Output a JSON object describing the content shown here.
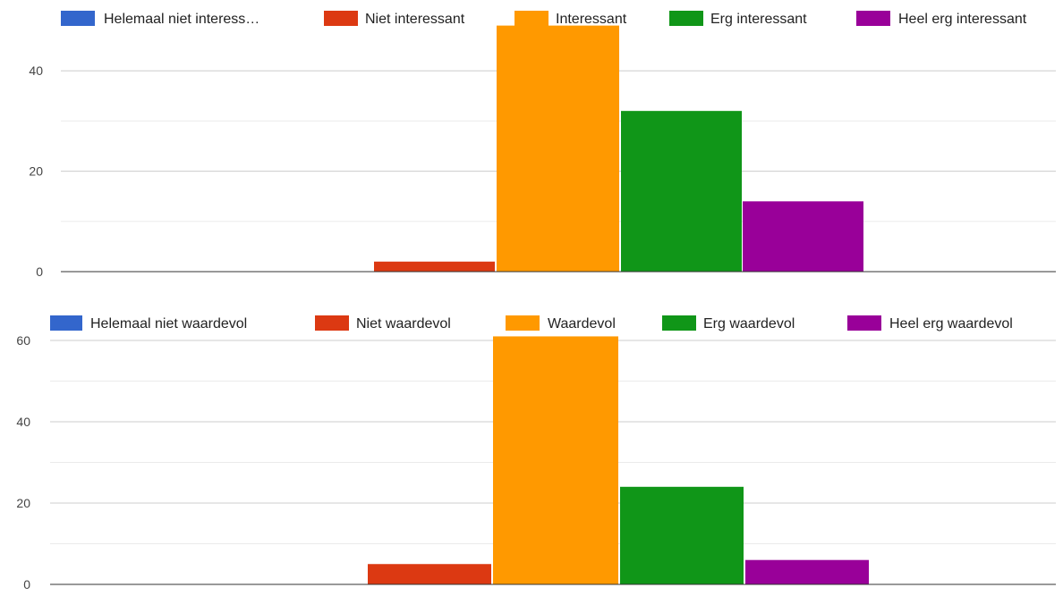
{
  "chart_data": [
    {
      "type": "bar",
      "title": "",
      "xlabel": "",
      "ylabel": "",
      "ylim": [
        0,
        49
      ],
      "yticks": [
        0,
        20,
        40
      ],
      "grid": true,
      "legend_position": "top",
      "categories": [
        ""
      ],
      "series": [
        {
          "name": "Helemaal niet interess…",
          "color": "#3366cc",
          "values": [
            0
          ]
        },
        {
          "name": "Niet interessant",
          "color": "#dc3912",
          "values": [
            2
          ]
        },
        {
          "name": "Interessant",
          "color": "#ff9900",
          "values": [
            49
          ]
        },
        {
          "name": "Erg interessant",
          "color": "#109618",
          "values": [
            32
          ]
        },
        {
          "name": "Heel erg interessant",
          "color": "#990099",
          "values": [
            14
          ]
        }
      ]
    },
    {
      "type": "bar",
      "title": "",
      "xlabel": "",
      "ylabel": "",
      "ylim": [
        0,
        61
      ],
      "yticks": [
        0,
        20,
        40,
        60
      ],
      "grid": true,
      "legend_position": "top",
      "categories": [
        ""
      ],
      "series": [
        {
          "name": "Helemaal niet waardevol",
          "color": "#3366cc",
          "values": [
            0
          ]
        },
        {
          "name": "Niet waardevol",
          "color": "#dc3912",
          "values": [
            5
          ]
        },
        {
          "name": "Waardevol",
          "color": "#ff9900",
          "values": [
            61
          ]
        },
        {
          "name": "Erg waardevol",
          "color": "#109618",
          "values": [
            24
          ]
        },
        {
          "name": "Heel erg waardevol",
          "color": "#990099",
          "values": [
            6
          ]
        }
      ]
    }
  ]
}
